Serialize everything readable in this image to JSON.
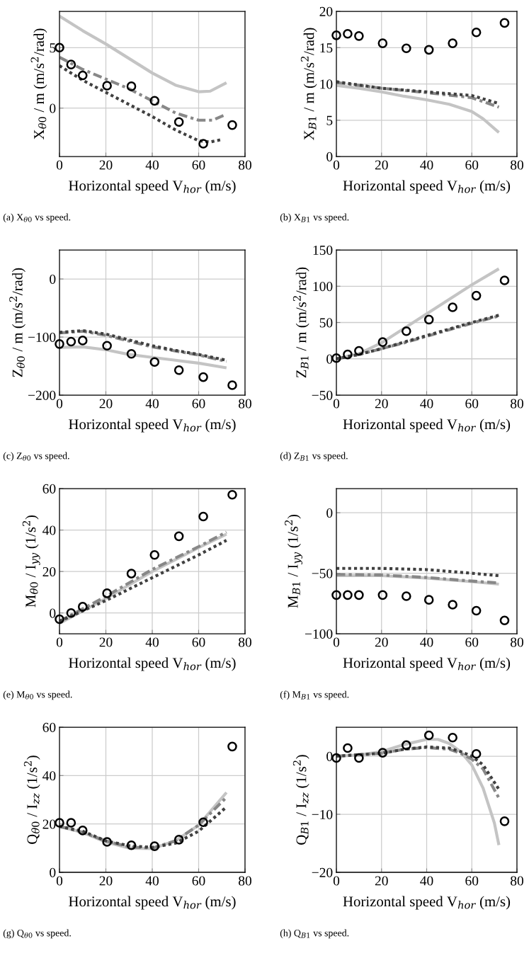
{
  "chart_data": [
    {
      "type": "line",
      "xlabel": "Horizontal speed V$_{hor}$ (m/s)",
      "ylabel": "X$_{θ0}$ / m (m/s$^{2}$/rad)",
      "xlim": [
        0,
        80
      ],
      "xticks": [
        0,
        20,
        40,
        60,
        80
      ],
      "ylim": [
        -4,
        8
      ],
      "yticks": [
        0,
        5
      ],
      "grid": true,
      "annotations": [
        "(a) X$_{θ0}$ vs speed."
      ],
      "series": [
        {
          "color": "#c4c4c4",
          "line_style": "solid",
          "x": [
            0,
            10,
            20,
            30,
            40,
            50,
            60,
            65,
            72
          ],
          "values": [
            7.6,
            6.4,
            5.3,
            4.1,
            2.9,
            1.9,
            1.35,
            1.4,
            2.1
          ]
        },
        {
          "color": "#888888",
          "line_style": "dashed",
          "x": [
            0,
            10,
            20,
            30,
            40,
            50,
            60,
            66,
            72
          ],
          "values": [
            4.2,
            3.2,
            2.4,
            1.6,
            0.6,
            -0.4,
            -1.0,
            -1.0,
            -0.5
          ]
        },
        {
          "color": "#404040",
          "line_style": "dotted",
          "x": [
            0,
            10,
            20,
            30,
            40,
            50,
            60,
            65,
            70
          ],
          "values": [
            3.5,
            2.3,
            1.3,
            0.3,
            -0.7,
            -1.8,
            -2.7,
            -2.8,
            -2.6
          ]
        },
        {
          "type": "scatter",
          "color": "#000000",
          "marker": "circle",
          "x": [
            0,
            5,
            10,
            20.5,
            31,
            41,
            51.5,
            62,
            74.5
          ],
          "values": [
            5.0,
            3.6,
            2.7,
            1.85,
            1.8,
            0.6,
            -1.15,
            -2.95,
            -1.4
          ]
        }
      ]
    },
    {
      "type": "line",
      "xlabel": "Horizontal speed V$_{hor}$ (m/s)",
      "ylabel": "X$_{B1}$ / m (m/s$^{2}$/rad)",
      "xlim": [
        0,
        80
      ],
      "xticks": [
        0,
        20,
        40,
        60,
        80
      ],
      "ylim": [
        0,
        20
      ],
      "yticks": [
        0,
        5,
        10,
        15,
        20
      ],
      "grid": true,
      "annotations": [
        "(b) X$_{B1}$ vs speed."
      ],
      "series": [
        {
          "color": "#c4c4c4",
          "line_style": "solid",
          "x": [
            0,
            10,
            20,
            30,
            40,
            50,
            60,
            65,
            72
          ],
          "values": [
            9.8,
            9.4,
            8.9,
            8.3,
            7.8,
            7.2,
            6.2,
            5.2,
            3.3
          ]
        },
        {
          "color": "#888888",
          "line_style": "dashed",
          "x": [
            0,
            20,
            40,
            60,
            72
          ],
          "values": [
            10.2,
            9.4,
            8.8,
            8.1,
            6.8
          ]
        },
        {
          "color": "#404040",
          "line_style": "dotted",
          "x": [
            0,
            20,
            40,
            60,
            72
          ],
          "values": [
            10.3,
            9.4,
            8.9,
            8.4,
            7.3
          ]
        },
        {
          "type": "scatter",
          "color": "#000000",
          "marker": "circle",
          "x": [
            0,
            5,
            10,
            20.5,
            31,
            41,
            51.5,
            62,
            74.5
          ],
          "values": [
            16.7,
            16.9,
            16.6,
            15.6,
            14.9,
            14.7,
            15.6,
            17.1,
            18.4
          ]
        }
      ]
    },
    {
      "type": "line",
      "xlabel": "Horizontal speed V$_{hor}$ (m/s)",
      "ylabel": "Z$_{θ0}$ / m (m/s$^{2}$/rad)",
      "xlim": [
        0,
        80
      ],
      "xticks": [
        0,
        20,
        40,
        60,
        80
      ],
      "ylim": [
        -200,
        50
      ],
      "yticks": [
        {
          "value": -200,
          "label": "−200"
        },
        {
          "value": -100,
          "label": "−100"
        },
        0
      ],
      "grid": true,
      "annotations": [
        "(c) Z$_{θ0}$ vs speed."
      ],
      "series": [
        {
          "color": "#c4c4c4",
          "line_style": "solid",
          "x": [
            0,
            10,
            20,
            30,
            40,
            50,
            60,
            72
          ],
          "values": [
            -118,
            -117,
            -122,
            -130,
            -135,
            -140,
            -145,
            -153
          ]
        },
        {
          "color": "#888888",
          "line_style": "dashed",
          "x": [
            0,
            10,
            20,
            30,
            40,
            50,
            60,
            72
          ],
          "values": [
            -93,
            -90,
            -97,
            -107,
            -117,
            -124,
            -131,
            -142
          ]
        },
        {
          "color": "#404040",
          "line_style": "dotted",
          "x": [
            0,
            10,
            20,
            30,
            40,
            50,
            60,
            72
          ],
          "values": [
            -92,
            -89,
            -95,
            -105,
            -115,
            -123,
            -130,
            -140
          ]
        },
        {
          "type": "scatter",
          "color": "#000000",
          "marker": "circle",
          "x": [
            0,
            5,
            10,
            20.5,
            31,
            41,
            51.5,
            62,
            74.5
          ],
          "values": [
            -112,
            -108,
            -106,
            -115,
            -129,
            -143,
            -157,
            -169,
            -183
          ]
        }
      ]
    },
    {
      "type": "line",
      "xlabel": "Horizontal speed V$_{hor}$ (m/s)",
      "ylabel": "Z$_{B1}$ / m (m/s$^{2}$/rad)",
      "xlim": [
        0,
        80
      ],
      "xticks": [
        0,
        20,
        40,
        60,
        80
      ],
      "ylim": [
        -50,
        150
      ],
      "yticks": [
        {
          "value": -50,
          "label": "−50"
        },
        0,
        50,
        100,
        150
      ],
      "grid": true,
      "annotations": [
        "(d) Z$_{B1}$ vs speed."
      ],
      "series": [
        {
          "color": "#c4c4c4",
          "line_style": "solid",
          "x": [
            0,
            10,
            20,
            30,
            40,
            50,
            60,
            72
          ],
          "values": [
            0,
            7,
            22,
            42,
            62,
            82,
            102,
            124
          ]
        },
        {
          "color": "#888888",
          "line_style": "dashed",
          "x": [
            0,
            10,
            20,
            30,
            40,
            50,
            60,
            72
          ],
          "values": [
            0,
            6,
            14,
            22,
            31,
            40,
            49,
            59
          ]
        },
        {
          "color": "#404040",
          "line_style": "dotted",
          "x": [
            0,
            10,
            20,
            30,
            40,
            50,
            60,
            72
          ],
          "values": [
            0,
            6,
            14,
            23,
            32,
            41,
            50,
            60
          ]
        },
        {
          "type": "scatter",
          "color": "#000000",
          "marker": "circle",
          "x": [
            0,
            5,
            10,
            20.5,
            31,
            41,
            51.5,
            62,
            74.5
          ],
          "values": [
            1,
            6,
            11,
            23,
            38,
            54,
            71,
            87,
            108
          ]
        }
      ]
    },
    {
      "type": "line",
      "xlabel": "Horizontal speed V$_{hor}$ (m/s)",
      "ylabel": "M$_{θ0}$ / I$_{yy}$ (1/s$^{2}$)",
      "xlim": [
        0,
        80
      ],
      "xticks": [
        0,
        20,
        40,
        60,
        80
      ],
      "ylim": [
        -10,
        60
      ],
      "yticks": [
        0,
        20,
        40,
        60
      ],
      "grid": true,
      "annotations": [
        "(e) M$_{θ0}$ vs speed."
      ],
      "series": [
        {
          "color": "#c4c4c4",
          "line_style": "solid",
          "x": [
            0,
            20,
            40,
            60,
            72
          ],
          "values": [
            -5,
            7,
            20,
            31.5,
            38
          ]
        },
        {
          "color": "#888888",
          "line_style": "dashed",
          "x": [
            0,
            20,
            40,
            60,
            72
          ],
          "values": [
            -4,
            8,
            21,
            32,
            39
          ]
        },
        {
          "color": "#404040",
          "line_style": "dotted",
          "x": [
            0,
            20,
            40,
            60,
            72
          ],
          "values": [
            -4,
            6,
            17,
            28,
            35
          ]
        },
        {
          "type": "scatter",
          "color": "#000000",
          "marker": "circle",
          "x": [
            0,
            5,
            10,
            20.5,
            31,
            41,
            51.5,
            62,
            74.5
          ],
          "values": [
            -3,
            0,
            3,
            9.5,
            19,
            28,
            37,
            46.5,
            57
          ]
        }
      ]
    },
    {
      "type": "line",
      "xlabel": "Horizontal speed V$_{hor}$ (m/s)",
      "ylabel": "M$_{B1}$ / I$_{yy}$ (1/s$^{2}$)",
      "xlim": [
        0,
        80
      ],
      "xticks": [
        0,
        20,
        40,
        60,
        80
      ],
      "ylim": [
        -100,
        20
      ],
      "yticks": [
        {
          "value": -100,
          "label": "−100"
        },
        {
          "value": -50,
          "label": "−50"
        },
        0
      ],
      "grid": true,
      "annotations": [
        "(f) M$_{B1}$ vs speed."
      ],
      "series": [
        {
          "color": "#c4c4c4",
          "line_style": "solid",
          "x": [
            0,
            20,
            40,
            60,
            72
          ],
          "values": [
            -52,
            -52,
            -54,
            -57,
            -59
          ]
        },
        {
          "color": "#888888",
          "line_style": "dashed",
          "x": [
            0,
            20,
            40,
            60,
            72
          ],
          "values": [
            -51,
            -51.5,
            -53.5,
            -56.5,
            -58
          ]
        },
        {
          "color": "#404040",
          "line_style": "dotted",
          "x": [
            0,
            20,
            40,
            60,
            72
          ],
          "values": [
            -46,
            -46,
            -47,
            -50,
            -52
          ]
        },
        {
          "type": "scatter",
          "color": "#000000",
          "marker": "circle",
          "x": [
            0,
            5,
            10,
            20.5,
            31,
            41,
            51.5,
            62,
            74.5
          ],
          "values": [
            -68,
            -68,
            -68,
            -68,
            -69,
            -72,
            -76,
            -81,
            -89
          ]
        }
      ]
    },
    {
      "type": "line",
      "xlabel": "Horizontal speed V$_{hor}$ (m/s)",
      "ylabel": "Q$_{θ0}$ / I$_{zz}$ (1/s$^{2}$)",
      "xlim": [
        0,
        80
      ],
      "xticks": [
        0,
        20,
        40,
        60,
        80
      ],
      "ylim": [
        0,
        60
      ],
      "yticks": [
        0,
        20,
        40,
        60
      ],
      "grid": true,
      "annotations": [
        "(g) Q$_{θ0}$ vs speed."
      ],
      "series": [
        {
          "color": "#c4c4c4",
          "line_style": "solid",
          "x": [
            0,
            10,
            20,
            30,
            40,
            50,
            60,
            72
          ],
          "values": [
            19,
            16.5,
            12.5,
            10,
            9.8,
            13,
            19.5,
            33
          ]
        },
        {
          "color": "#888888",
          "line_style": "dashed",
          "x": [
            0,
            10,
            20,
            30,
            40,
            50,
            60,
            72
          ],
          "values": [
            19,
            16.5,
            13,
            10.5,
            10,
            13,
            19.5,
            31
          ]
        },
        {
          "color": "#404040",
          "line_style": "dotted",
          "x": [
            0,
            10,
            20,
            30,
            40,
            50,
            60,
            72
          ],
          "values": [
            19,
            17,
            13,
            11,
            10.3,
            12,
            17,
            27
          ]
        },
        {
          "type": "scatter",
          "color": "#000000",
          "marker": "circle",
          "x": [
            0,
            5,
            10,
            20.5,
            31,
            41,
            51.5,
            62,
            74.5
          ],
          "values": [
            20.5,
            20.5,
            17.3,
            12.6,
            11.2,
            10.8,
            13.5,
            20.7,
            52
          ]
        }
      ]
    },
    {
      "type": "line",
      "xlabel": "Horizontal speed V$_{hor}$ (m/s)",
      "ylabel": "Q$_{B1}$ / I$_{zz}$ (1/s$^{2}$)",
      "xlim": [
        0,
        80
      ],
      "xticks": [
        0,
        20,
        40,
        60,
        80
      ],
      "ylim": [
        -20,
        5
      ],
      "yticks": [
        {
          "value": -20,
          "label": "−20"
        },
        {
          "value": -10,
          "label": "−10"
        },
        0
      ],
      "grid": true,
      "annotations": [
        "(h) Q$_{B1}$ vs speed."
      ],
      "series": [
        {
          "color": "#c4c4c4",
          "line_style": "solid",
          "x": [
            0,
            10,
            20,
            30,
            40,
            45,
            50,
            55,
            60,
            65,
            70,
            72
          ],
          "values": [
            0,
            0.2,
            0.8,
            2,
            2.9,
            2.9,
            2.2,
            0.8,
            -1.5,
            -5.5,
            -11.5,
            -15.3
          ]
        },
        {
          "color": "#888888",
          "line_style": "dashed",
          "x": [
            0,
            20,
            30,
            40,
            50,
            55,
            60,
            65,
            72
          ],
          "values": [
            0,
            0.5,
            1.2,
            1.5,
            1.2,
            0.5,
            -0.5,
            -2.2,
            -7.2
          ]
        },
        {
          "color": "#404040",
          "line_style": "dotted",
          "x": [
            0,
            20,
            30,
            40,
            50,
            55,
            60,
            65,
            72
          ],
          "values": [
            0,
            0.5,
            1.2,
            1.6,
            1.4,
            0.8,
            0,
            -1.5,
            -5.7
          ]
        },
        {
          "type": "scatter",
          "color": "#000000",
          "marker": "circle",
          "x": [
            0,
            5,
            10,
            20.5,
            31,
            41,
            51.5,
            62,
            74.5
          ],
          "values": [
            -0.3,
            1.4,
            -0.3,
            0.6,
            1.9,
            3.6,
            3.2,
            0.4,
            -11.2
          ]
        }
      ]
    }
  ]
}
